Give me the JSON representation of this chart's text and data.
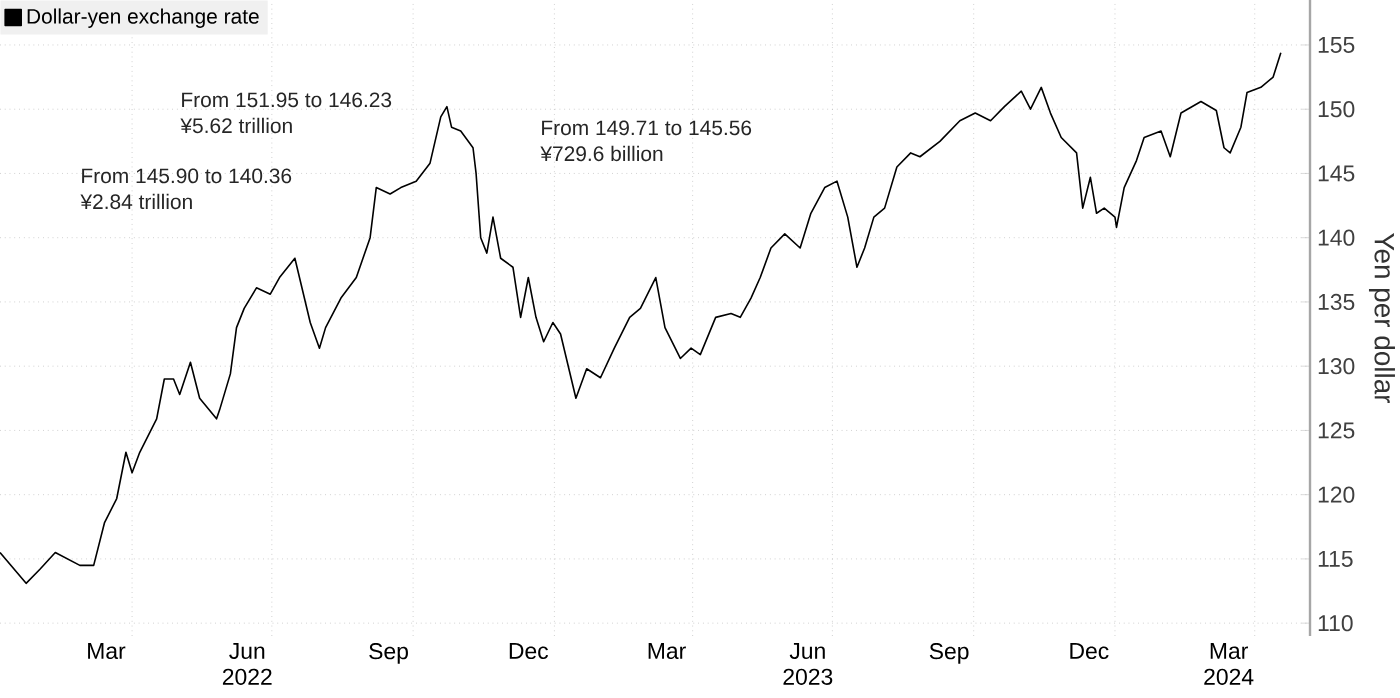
{
  "chart_data": {
    "type": "line",
    "ylabel": "Yen per dollar",
    "annotations": [
      "From 145.90 to 140.36",
      "¥2.84 trillion",
      "From 151.95 to 146.23",
      "¥5.62 trillion",
      "From 149.71 to 145.56",
      "¥729.6 billion"
    ],
    "series": [
      {
        "name": "Dollar-yen exchange rate",
        "color": "#000000",
        "x": [
          "2022-01-05",
          "2022-01-22",
          "2022-01-31",
          "2022-02-10",
          "2022-02-26",
          "2022-03-07",
          "2022-03-14",
          "2022-03-22",
          "2022-03-28",
          "2022-04-01",
          "2022-04-06",
          "2022-04-17",
          "2022-04-22",
          "2022-04-28",
          "2022-05-02",
          "2022-05-09",
          "2022-05-15",
          "2022-05-26",
          "2022-05-28",
          "2022-06-04",
          "2022-06-08",
          "2022-06-13",
          "2022-06-21",
          "2022-06-30",
          "2022-07-06",
          "2022-07-16",
          "2022-07-19",
          "2022-07-26",
          "2022-08-01",
          "2022-08-05",
          "2022-08-15",
          "2022-08-25",
          "2022-09-03",
          "2022-09-07",
          "2022-09-16",
          "2022-09-23",
          "2022-10-03",
          "2022-10-12",
          "2022-10-19",
          "2022-10-23",
          "2022-10-26",
          "2022-11-01",
          "2022-11-09",
          "2022-11-11",
          "2022-11-14",
          "2022-11-18",
          "2022-11-22",
          "2022-11-27",
          "2022-12-05",
          "2022-12-10",
          "2022-12-15",
          "2022-12-20",
          "2022-12-25",
          "2022-12-31",
          "2023-01-05",
          "2023-01-15",
          "2023-01-22",
          "2023-01-31",
          "2023-02-09",
          "2023-02-19",
          "2023-02-26",
          "2023-03-08",
          "2023-03-14",
          "2023-03-24",
          "2023-03-31",
          "2023-04-06",
          "2023-04-16",
          "2023-04-26",
          "2023-05-02",
          "2023-05-09",
          "2023-05-15",
          "2023-05-22",
          "2023-05-31",
          "2023-06-10",
          "2023-06-17",
          "2023-06-26",
          "2023-07-04",
          "2023-07-11",
          "2023-07-17",
          "2023-07-22",
          "2023-07-28",
          "2023-08-04",
          "2023-08-12",
          "2023-08-21",
          "2023-08-27",
          "2023-09-09",
          "2023-09-22",
          "2023-10-02",
          "2023-10-12",
          "2023-10-21",
          "2023-11-01",
          "2023-11-07",
          "2023-11-14",
          "2023-11-20",
          "2023-11-27",
          "2023-12-07",
          "2023-12-11",
          "2023-12-16",
          "2023-12-20",
          "2023-12-25",
          "2024-01-01",
          "2024-01-02",
          "2024-01-07",
          "2024-01-15",
          "2024-01-20",
          "2024-01-31",
          "2024-02-06",
          "2024-02-13",
          "2024-02-26",
          "2024-03-07",
          "2024-03-12",
          "2024-03-16",
          "2024-03-23",
          "2024-03-27",
          "2024-04-05",
          "2024-04-13",
          "2024-04-18"
        ],
        "values": [
          115.5,
          113.1,
          114.2,
          115.5,
          114.5,
          114.5,
          117.8,
          119.7,
          123.3,
          121.7,
          123.3,
          125.9,
          129,
          129,
          127.8,
          130.3,
          127.5,
          125.9,
          126.6,
          129.4,
          133,
          134.5,
          136.1,
          135.6,
          136.9,
          138.4,
          136.9,
          133.4,
          131.4,
          133,
          135.3,
          136.9,
          140,
          143.9,
          143.4,
          143.9,
          144.4,
          145.8,
          149.4,
          150.2,
          148.6,
          148.3,
          147,
          145,
          140,
          138.8,
          141.6,
          138.4,
          137.7,
          133.8,
          136.9,
          133.8,
          131.9,
          133.4,
          132.5,
          127.5,
          129.8,
          129.1,
          131.4,
          133.8,
          134.5,
          136.9,
          133,
          130.6,
          131.4,
          130.9,
          133.8,
          134.1,
          133.8,
          135.3,
          136.9,
          139.2,
          140.3,
          139.2,
          141.9,
          143.9,
          144.4,
          141.6,
          137.7,
          139.2,
          141.6,
          142.3,
          145.5,
          146.6,
          146.3,
          147.5,
          149.1,
          149.7,
          149.1,
          150.2,
          151.4,
          150,
          151.7,
          149.7,
          147.8,
          146.6,
          142.3,
          144.7,
          141.9,
          142.3,
          141.6,
          140.8,
          143.9,
          146,
          147.8,
          148.3,
          146.3,
          149.7,
          150.6,
          149.9,
          147,
          146.6,
          148.6,
          151.3,
          151.7,
          152.5,
          154.4
        ]
      }
    ],
    "xlim": [
      "2022-01-05",
      "2024-05-07"
    ],
    "xticks": [
      {
        "value": "2022-03-15",
        "label": "Mar"
      },
      {
        "value": "2022-06-15",
        "label": "Jun 2022"
      },
      {
        "value": "2022-09-15",
        "label": "Sep"
      },
      {
        "value": "2022-12-15",
        "label": "Dec"
      },
      {
        "value": "2023-03-15",
        "label": "Mar"
      },
      {
        "value": "2023-06-15",
        "label": "Jun 2023"
      },
      {
        "value": "2023-09-15",
        "label": "Sep"
      },
      {
        "value": "2023-12-15",
        "label": "Dec"
      },
      {
        "value": "2024-03-15",
        "label": "Mar 2024"
      },
      {
        "value": "2022-04-01",
        "label": null
      },
      {
        "value": "2022-07-01",
        "label": null
      },
      {
        "value": "2022-10-01",
        "label": null
      },
      {
        "value": "2023-01-01",
        "label": null
      },
      {
        "value": "2023-04-01",
        "label": null
      },
      {
        "value": "2023-07-01",
        "label": null
      },
      {
        "value": "2023-10-01",
        "label": null
      },
      {
        "value": "2024-01-01",
        "label": null
      },
      {
        "value": "2024-04-01",
        "label": null
      }
    ],
    "ylim": [
      109,
      158.5
    ],
    "yticks": [
      110,
      115,
      120,
      125,
      130,
      135,
      140,
      145,
      150,
      155
    ],
    "grid": true,
    "legend": "top left",
    "line_style": "solid",
    "marker": "none"
  }
}
